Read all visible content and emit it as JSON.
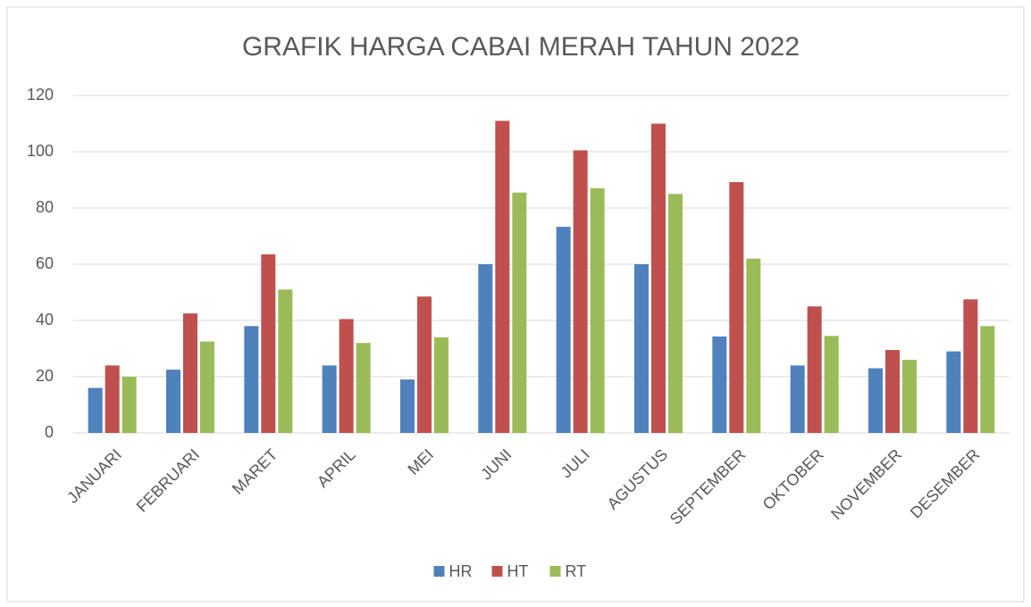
{
  "chart_data": {
    "type": "bar",
    "title": "GRAFIK HARGA CABAI MERAH TAHUN 2022",
    "categories": [
      "JANUARI",
      "FEBRUARI",
      "MARET",
      "APRIL",
      "MEI",
      "JUNI",
      "JULI",
      "AGUSTUS",
      "SEPTEMBER",
      "OKTOBER",
      "NOVEMBER",
      "DESEMBER"
    ],
    "series": [
      {
        "name": "HR",
        "color": "#4f81bd",
        "values": [
          16,
          22.5,
          38,
          24,
          19,
          60,
          73.3,
          60,
          34.3,
          24,
          23,
          29
        ]
      },
      {
        "name": "HT",
        "color": "#c0504d",
        "values": [
          24,
          42.5,
          63.5,
          40.5,
          48.5,
          111,
          100.5,
          110,
          89.2,
          45,
          29.5,
          47.5
        ]
      },
      {
        "name": "RT",
        "color": "#9bbb59",
        "values": [
          20,
          32.5,
          51,
          32,
          34,
          85.5,
          87,
          85,
          62,
          34.5,
          26,
          38
        ]
      }
    ],
    "ylim": [
      0,
      120
    ],
    "yticks": [
      0,
      20,
      40,
      60,
      80,
      100,
      120
    ],
    "grid": true,
    "legend": "bottom"
  }
}
